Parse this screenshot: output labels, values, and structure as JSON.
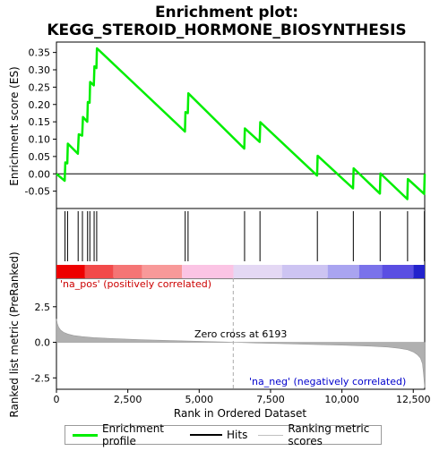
{
  "chart_data": [
    {
      "type": "line",
      "title": "Enrichment plot:\nKEGG_STEROID_HORMONE_BIOSYNTHESIS",
      "ylabel": "Enrichment score (ES)",
      "xlim": [
        0,
        12900
      ],
      "ylim": [
        -0.1,
        0.38
      ],
      "y_ticks": [
        -0.05,
        0.0,
        0.05,
        0.1,
        0.15,
        0.2,
        0.25,
        0.3,
        0.35
      ],
      "y_tick_labels": [
        "-0.05",
        "0.00",
        "0.05",
        "0.10",
        "0.15",
        "0.20",
        "0.25",
        "0.30",
        "0.35"
      ],
      "series": [
        {
          "name": "Enrichment profile",
          "color": "#00ee00",
          "x": [
            0,
            290,
            310,
            380,
            400,
            750,
            780,
            900,
            930,
            1080,
            1100,
            1160,
            1180,
            1310,
            1330,
            1400,
            1420,
            4500,
            4520,
            4600,
            4620,
            6580,
            6600,
            7120,
            7140,
            9130,
            9150,
            10390,
            10410,
            11330,
            11350,
            12290,
            12310,
            12880,
            12900
          ],
          "y": [
            0.0,
            -0.02,
            0.033,
            0.03,
            0.087,
            0.058,
            0.114,
            0.11,
            0.164,
            0.15,
            0.207,
            0.205,
            0.265,
            0.255,
            0.31,
            0.305,
            0.362,
            0.122,
            0.178,
            0.175,
            0.232,
            0.073,
            0.131,
            0.092,
            0.149,
            -0.005,
            0.052,
            -0.042,
            0.016,
            -0.057,
            0.001,
            -0.073,
            -0.015,
            -0.058,
            0.0
          ]
        }
      ]
    },
    {
      "type": "hits",
      "name": "Hits",
      "xlim": [
        0,
        12900
      ],
      "hit_positions": [
        300,
        390,
        760,
        910,
        1090,
        1170,
        1320,
        1410,
        4510,
        4610,
        6590,
        7130,
        9140,
        10400,
        11340,
        12300,
        12890
      ],
      "heatmap_colors": [
        "#ee0000",
        "#f24a4a",
        "#f57575",
        "#f89999",
        "#fbc4e4",
        "#e4d8f4",
        "#cdc4f2",
        "#a9a4f0",
        "#7a72ea",
        "#5a4ee2",
        "#2222cc"
      ],
      "heatmap_bounds": [
        0,
        1000,
        2000,
        3000,
        4400,
        6200,
        7900,
        9500,
        10600,
        11400,
        12500,
        12900
      ]
    },
    {
      "type": "area",
      "name": "Ranking metric scores",
      "xlabel": "Rank in Ordered Dataset",
      "ylabel": "Ranked list metric (PreRanked)",
      "xlim": [
        0,
        12900
      ],
      "ylim": [
        -3.3,
        4.5
      ],
      "x_ticks": [
        0,
        2500,
        5000,
        7500,
        10000,
        12500
      ],
      "x_tick_labels": [
        "0",
        "2,500",
        "5,000",
        "7,500",
        "10,000",
        "12,500"
      ],
      "y_ticks": [
        -2.5,
        0.0,
        2.5
      ],
      "y_tick_labels": [
        "-2.5",
        "0.0",
        "2.5"
      ],
      "x": [
        0,
        30,
        80,
        150,
        250,
        400,
        600,
        900,
        1300,
        2000,
        3000,
        4000,
        5000,
        6193,
        7000,
        8000,
        9000,
        10000,
        11000,
        11600,
        12000,
        12300,
        12500,
        12650,
        12750,
        12820,
        12860,
        12900
      ],
      "y": [
        1.65,
        1.3,
        1.05,
        0.85,
        0.7,
        0.58,
        0.48,
        0.4,
        0.33,
        0.26,
        0.18,
        0.12,
        0.07,
        0.0,
        -0.05,
        -0.1,
        -0.15,
        -0.2,
        -0.27,
        -0.33,
        -0.42,
        -0.52,
        -0.68,
        -0.88,
        -1.1,
        -1.5,
        -2.2,
        -3.2
      ],
      "zero_cross": 6193,
      "zero_cross_label": "Zero cross at 6193",
      "pos_label": "'na_pos' (positively correlated)",
      "neg_label": "'na_neg' (negatively correlated)"
    }
  ],
  "legend": {
    "items": [
      {
        "label": "Enrichment profile",
        "color": "#00ee00"
      },
      {
        "label": "Hits",
        "color": "#000000"
      },
      {
        "label": "Ranking metric scores",
        "color": "#c0c0c0"
      }
    ]
  }
}
